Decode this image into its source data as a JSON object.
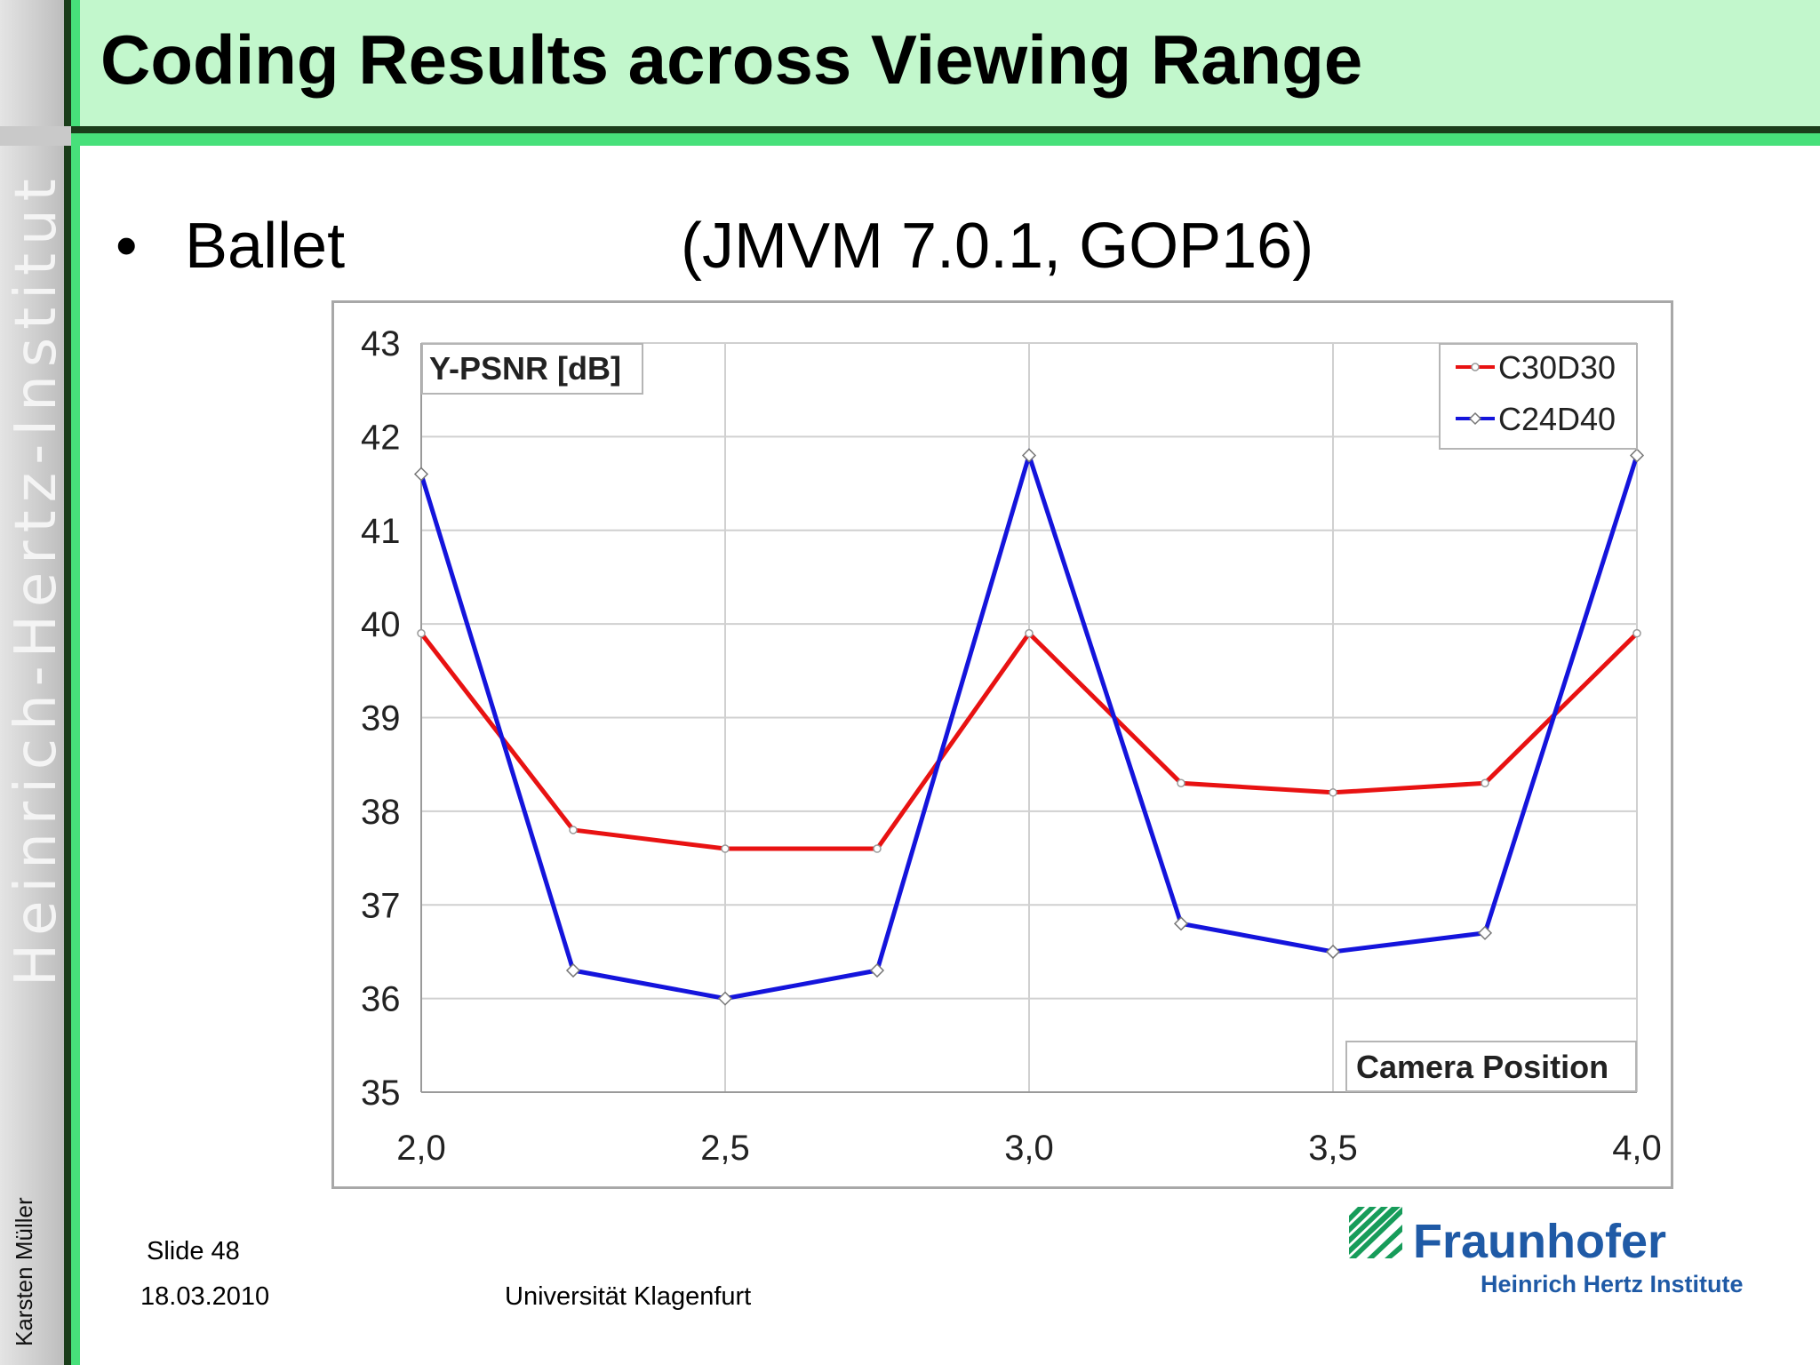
{
  "title": "Coding Results across Viewing Range",
  "sidebar": {
    "brand": "Heinrich-Hertz-Institut",
    "author": "Karsten Müller"
  },
  "bullet": {
    "symbol": "•",
    "text": "Ballet",
    "subtitle": "(JMVM 7.0.1, GOP16)"
  },
  "footer": {
    "slide": "Slide 48",
    "date": "18.03.2010",
    "university": "Universität Klagenfurt"
  },
  "logo": {
    "name": "Fraunhofer",
    "institute": "Heinrich Hertz Institute",
    "color": "#1f5aa6",
    "mark_color": "#179c5a"
  },
  "chart_data": {
    "type": "line",
    "ylabel": "Y-PSNR [dB]",
    "xlabel": "Camera Position",
    "xlim": [
      2.0,
      4.0
    ],
    "ylim": [
      35,
      43
    ],
    "xticks": [
      2.0,
      2.5,
      3.0,
      3.5,
      4.0
    ],
    "xtick_labels": [
      "2,0",
      "2,5",
      "3,0",
      "3,5",
      "4,0"
    ],
    "yticks": [
      35,
      36,
      37,
      38,
      39,
      40,
      41,
      42,
      43
    ],
    "grid": true,
    "legend_position": "top-right",
    "x": [
      2.0,
      2.25,
      2.5,
      2.75,
      3.0,
      3.25,
      3.5,
      3.75,
      4.0
    ],
    "series": [
      {
        "name": "C30D30",
        "color": "#e81212",
        "values": [
          39.9,
          37.8,
          37.6,
          37.6,
          39.9,
          38.3,
          38.2,
          38.3,
          39.9
        ]
      },
      {
        "name": "C24D40",
        "color": "#1414dc",
        "values": [
          41.6,
          36.3,
          36.0,
          36.3,
          41.8,
          36.8,
          36.5,
          36.7,
          41.8
        ]
      }
    ]
  }
}
